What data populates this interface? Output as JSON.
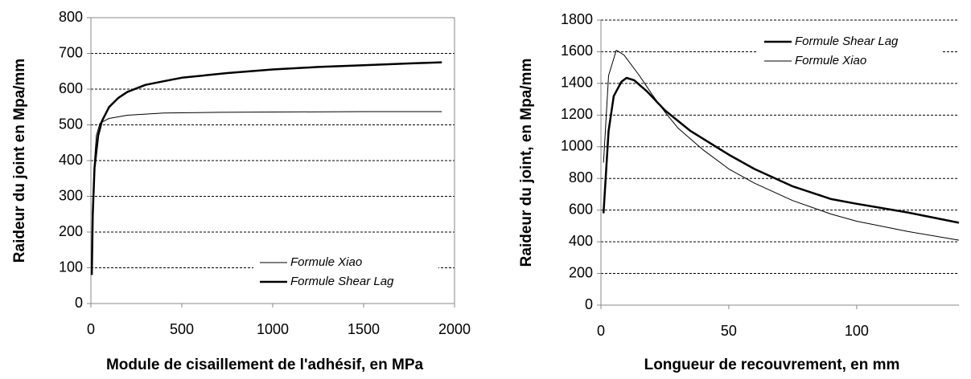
{
  "chart_data": [
    {
      "type": "line",
      "xlabel": "Module de cisaillement de l'adhésif, en MPa",
      "ylabel": "Raideur du joint en Mpa/mm",
      "xlim": [
        0,
        2000
      ],
      "xticks": [
        0,
        500,
        1000,
        1500,
        2000
      ],
      "ylim": [
        0,
        800
      ],
      "yticks": [
        0,
        100,
        200,
        300,
        400,
        500,
        600,
        700,
        800
      ],
      "grid": true,
      "legend": "lower right",
      "series": [
        {
          "name": "Formule Xiao",
          "color": "#000000",
          "linewidth": 1,
          "x": [
            5,
            10,
            20,
            30,
            50,
            100,
            200,
            400,
            700,
            1000,
            1500,
            1930
          ],
          "values": [
            100,
            250,
            400,
            470,
            505,
            518,
            527,
            533,
            535,
            536,
            537,
            537
          ]
        },
        {
          "name": "Formule Shear Lag",
          "color": "#000000",
          "linewidth": 2.5,
          "x": [
            5,
            10,
            20,
            40,
            60,
            100,
            150,
            200,
            300,
            400,
            500,
            750,
            1000,
            1250,
            1500,
            1750,
            1930
          ],
          "values": [
            80,
            250,
            380,
            470,
            510,
            550,
            575,
            592,
            612,
            622,
            632,
            645,
            655,
            662,
            667,
            672,
            675
          ]
        }
      ]
    },
    {
      "type": "line",
      "xlabel": "Longueur de recouvrement, en mm",
      "ylabel": "Raideur du joint, en Mpa/mm",
      "xlim": [
        0,
        140
      ],
      "xticks": [
        0,
        50,
        100
      ],
      "ylim": [
        0,
        1800
      ],
      "yticks": [
        0,
        200,
        400,
        600,
        800,
        1000,
        1200,
        1400,
        1600,
        1800
      ],
      "grid": true,
      "legend": "upper right",
      "series": [
        {
          "name": "Formule Shear Lag",
          "color": "#000000",
          "linewidth": 2.5,
          "x": [
            1,
            3,
            5,
            8,
            10,
            13,
            18,
            25,
            35,
            50,
            60,
            75,
            90,
            100,
            120,
            140
          ],
          "values": [
            580,
            1100,
            1320,
            1410,
            1435,
            1420,
            1350,
            1230,
            1100,
            950,
            860,
            750,
            670,
            640,
            585,
            520
          ]
        },
        {
          "name": "Formule Xiao",
          "color": "#000000",
          "linewidth": 1,
          "x": [
            1,
            3,
            6,
            9,
            15,
            20,
            25,
            30,
            40,
            50,
            60,
            75,
            90,
            100,
            120,
            140
          ],
          "values": [
            900,
            1450,
            1610,
            1580,
            1450,
            1330,
            1220,
            1120,
            980,
            860,
            770,
            660,
            575,
            530,
            465,
            410
          ]
        }
      ]
    }
  ]
}
